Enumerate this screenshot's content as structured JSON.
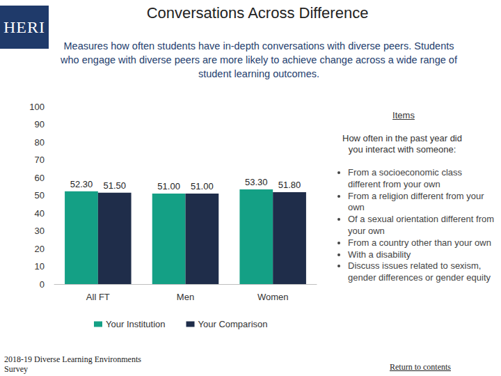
{
  "chart_data": {
    "type": "bar",
    "title": "Conversations Across Difference",
    "subtitle": "Measures how often students have in-depth conversations with diverse peers. Students who engage with diverse peers are more likely to achieve change across a wide range of student learning outcomes.",
    "categories": [
      "All FT",
      "Men",
      "Women"
    ],
    "series": [
      {
        "name": "Your Institution",
        "color": "#14a085",
        "values": [
          52.3,
          51.0,
          53.3
        ],
        "value_labels": [
          "52.30",
          "51.00",
          "53.30"
        ]
      },
      {
        "name": "Your Comparison",
        "color": "#1f2d4a",
        "values": [
          51.5,
          51.0,
          51.8
        ],
        "value_labels": [
          "51.50",
          "51.00",
          "51.80"
        ]
      }
    ],
    "ylim": [
      0,
      100
    ],
    "yticks": [
      0,
      10,
      20,
      30,
      40,
      50,
      60,
      70,
      80,
      90,
      100
    ],
    "grid": false,
    "legend": "bottom",
    "data_labels": true
  },
  "logo": "HERI",
  "items": {
    "heading": "Items",
    "prompt": "How often in the past year did you interact with someone:",
    "list": [
      "From a socioeconomic class different from your own",
      "From a religion different from your own",
      "Of a sexual orientation different from your own",
      "From a country other than your own",
      "With a disability",
      "Discuss issues related to sexism, gender differences or gender equity"
    ]
  },
  "footer": "2018-19 Diverse Learning Environments Survey",
  "link": "Return to contents"
}
